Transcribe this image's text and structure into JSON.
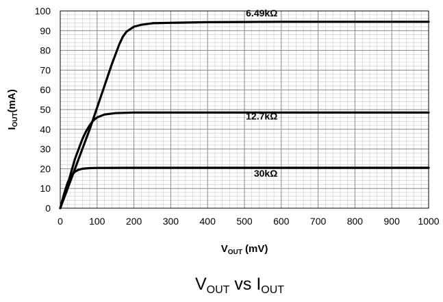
{
  "chart_data": {
    "type": "line",
    "title": "",
    "caption": {
      "main1": "V",
      "sub1": "OUT",
      "mid": " vs I",
      "sub2": "OUT"
    },
    "xlabel": {
      "main": "V",
      "sub": "OUT",
      "rest": " (mV)"
    },
    "ylabel": {
      "main": "I",
      "sub": "OUT",
      "rest": "(mA)"
    },
    "xlim": [
      0,
      1000
    ],
    "ylim": [
      0,
      100
    ],
    "xticks": [
      0,
      100,
      200,
      300,
      400,
      500,
      600,
      700,
      800,
      900,
      1000
    ],
    "yticks": [
      0,
      10,
      20,
      30,
      40,
      50,
      60,
      70,
      80,
      90,
      100
    ],
    "grid": true,
    "series": [
      {
        "name": "6.49kΩ",
        "x": [
          0,
          20,
          50,
          80,
          100,
          120,
          140,
          160,
          170,
          180,
          200,
          220,
          250,
          300,
          400,
          500,
          600,
          700,
          800,
          1000
        ],
        "y": [
          0,
          10,
          25,
          40,
          51,
          62,
          73,
          83,
          87,
          89.5,
          92,
          93,
          93.8,
          94,
          94.3,
          94.4,
          94.5,
          94.5,
          94.5,
          94.5
        ]
      },
      {
        "name": "12.7kΩ",
        "x": [
          0,
          20,
          40,
          60,
          70,
          80,
          90,
          100,
          120,
          150,
          200,
          300,
          500,
          1000
        ],
        "y": [
          0,
          12,
          25,
          35,
          39,
          42,
          44.5,
          46,
          47.5,
          48.2,
          48.5,
          48.5,
          48.5,
          48.5
        ],
        "label_y": 45
      },
      {
        "name": "30kΩ",
        "x": [
          0,
          10,
          20,
          30,
          40,
          50,
          60,
          80,
          100,
          200,
          500,
          1000
        ],
        "y": [
          0,
          7,
          13,
          16.5,
          18.5,
          19.5,
          20,
          20.3,
          20.4,
          20.5,
          20.5,
          20.5
        ],
        "label_y": 16
      }
    ]
  }
}
